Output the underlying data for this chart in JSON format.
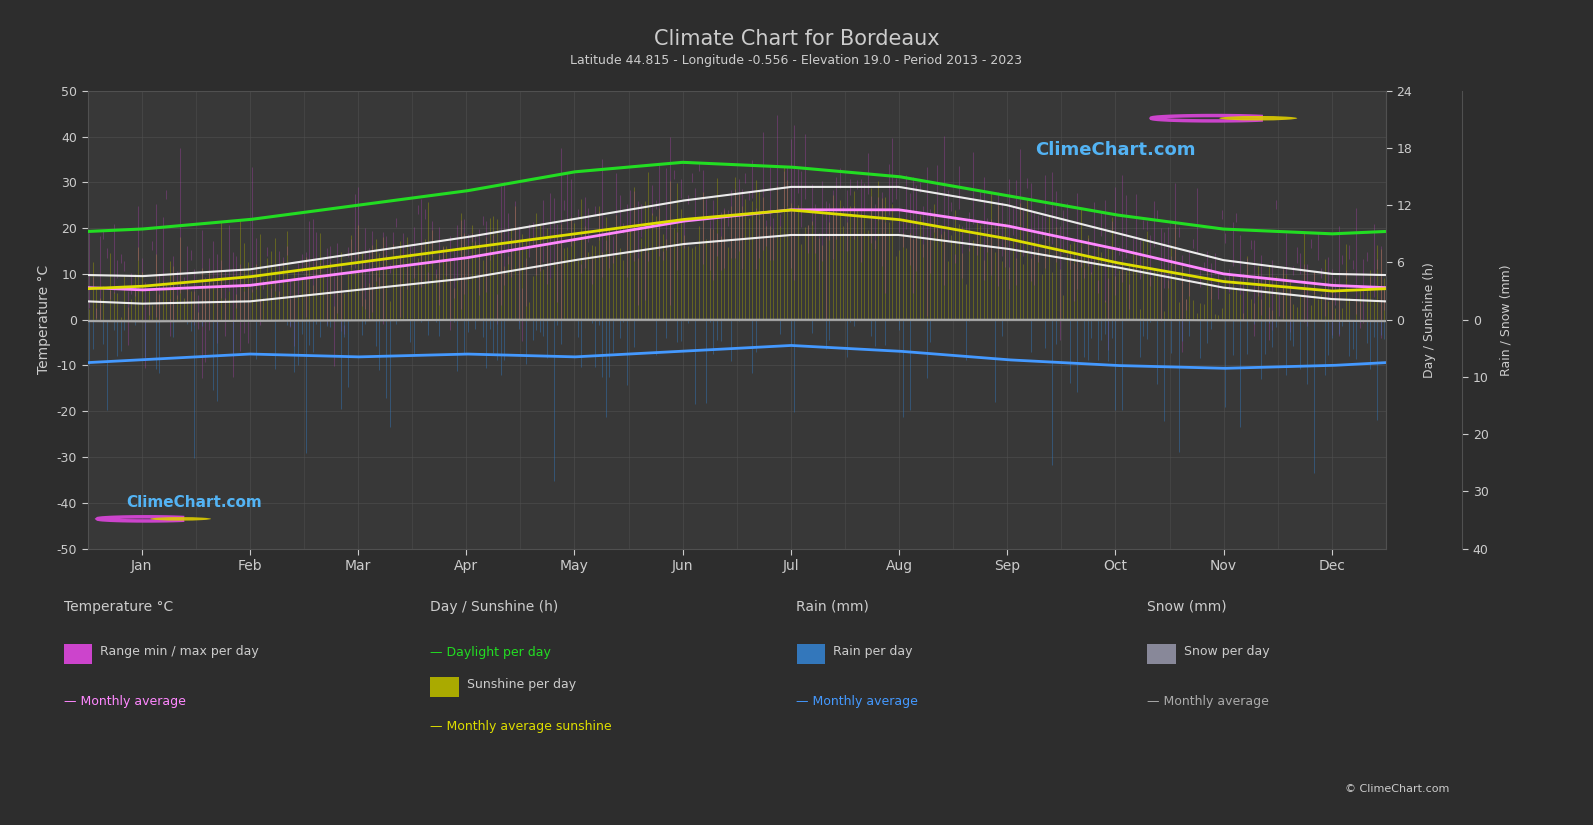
{
  "title": "Climate Chart for Bordeaux",
  "subtitle": "Latitude 44.815 - Longitude -0.556 - Elevation 19.0 - Period 2013 - 2023",
  "bg_color": "#2d2d2d",
  "plot_bg_color": "#383838",
  "text_color": "#cccccc",
  "grid_color": "#505050",
  "ylabel_left": "Temperature °C",
  "ylabel_right1": "Day / Sunshine (h)",
  "ylabel_right2": "Rain / Snow (mm)",
  "ylim_temp": [
    -50,
    50
  ],
  "months": [
    "Jan",
    "Feb",
    "Mar",
    "Apr",
    "May",
    "Jun",
    "Jul",
    "Aug",
    "Sep",
    "Oct",
    "Nov",
    "Dec"
  ],
  "temp_min_monthly": [
    3.5,
    4.0,
    6.5,
    9.0,
    13.0,
    16.5,
    18.5,
    18.5,
    15.5,
    11.5,
    7.0,
    4.5
  ],
  "temp_max_monthly": [
    9.5,
    11.0,
    14.5,
    18.0,
    22.0,
    26.0,
    29.0,
    29.0,
    25.0,
    19.0,
    13.0,
    10.0
  ],
  "temp_avg_monthly": [
    6.5,
    7.5,
    10.5,
    13.5,
    17.5,
    21.5,
    24.0,
    24.0,
    20.5,
    15.5,
    10.0,
    7.5
  ],
  "sunshine_monthly": [
    3.5,
    4.5,
    6.0,
    7.5,
    9.0,
    10.5,
    11.5,
    10.5,
    8.5,
    6.0,
    4.0,
    3.0
  ],
  "daylight_monthly": [
    9.5,
    10.5,
    12.0,
    13.5,
    15.5,
    16.5,
    16.0,
    15.0,
    13.0,
    11.0,
    9.5,
    9.0
  ],
  "rain_daily_prob": [
    0.55,
    0.5,
    0.5,
    0.48,
    0.48,
    0.4,
    0.32,
    0.35,
    0.45,
    0.52,
    0.58,
    0.58
  ],
  "rain_daily_intensity": [
    6.0,
    5.5,
    6.0,
    5.5,
    6.0,
    5.5,
    5.0,
    6.0,
    7.0,
    7.5,
    7.5,
    7.0
  ],
  "rain_monthly_avg_mm": [
    70,
    60,
    65,
    60,
    65,
    55,
    45,
    55,
    70,
    80,
    85,
    80
  ],
  "snow_monthly_avg_mm": [
    3,
    2,
    1,
    0,
    0,
    0,
    0,
    0,
    0,
    0,
    1,
    2
  ],
  "sun_scale": 2.083,
  "rain_scale": 1.25,
  "watermark_top": "ClimeChart.com",
  "watermark_bottom": "ClimeChart.com",
  "copyright": "© ClimeChart.com",
  "sun_ticks_h": [
    0,
    6,
    12,
    18,
    24
  ],
  "rain_ticks_mm": [
    0,
    10,
    20,
    30,
    40
  ]
}
